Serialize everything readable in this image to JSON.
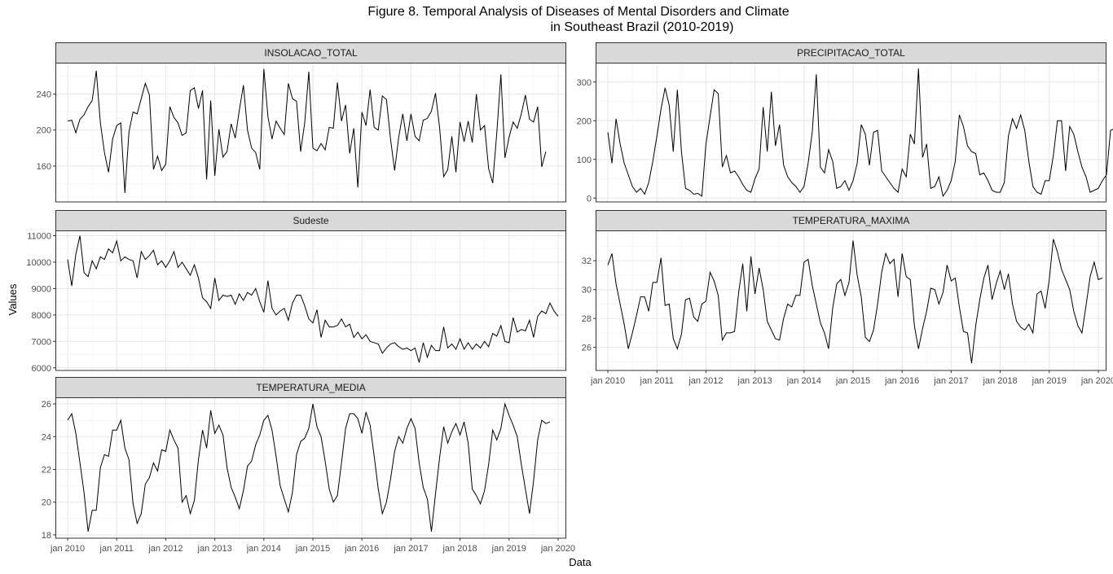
{
  "title_line1": "Figure 8. Temporal Analysis of Diseases of Mental Disorders and Climate",
  "title_line2": "in Southeast Brazil (2010-2019)",
  "chart_data": {
    "type": "line",
    "facet": "wrap",
    "x_label": "Data",
    "y_label": "Values",
    "x_ticks": [
      "jan 2010",
      "jan 2011",
      "jan 2012",
      "jan 2013",
      "jan 2014",
      "jan 2015",
      "jan 2016",
      "jan 2017",
      "jan 2018",
      "jan 2019",
      "jan 2020"
    ],
    "x_start": "2010-01",
    "x_frequency": "monthly",
    "x_range": [
      "2009-10",
      "2020-03"
    ],
    "grid": true,
    "theme": "bw",
    "panels": [
      {
        "name": "INSOLACAO_TOTAL",
        "ylim": [
          120,
          275
        ],
        "y_ticks": [
          160,
          200,
          240
        ],
        "values": [
          210,
          211,
          197,
          212,
          217,
          226,
          233,
          266,
          208,
          175,
          153,
          190,
          205,
          208,
          130,
          198,
          220,
          218,
          235,
          252,
          239,
          156,
          171,
          155,
          162,
          226,
          214,
          208,
          194,
          197,
          244,
          247,
          224,
          244,
          145,
          233,
          149,
          201,
          170,
          176,
          207,
          191,
          222,
          250,
          200,
          180,
          175,
          156,
          268,
          215,
          190,
          210,
          202,
          195,
          252,
          235,
          232,
          176,
          208,
          265,
          180,
          177,
          185,
          178,
          203,
          202,
          253,
          210,
          228,
          174,
          202,
          136,
          220,
          205,
          245,
          203,
          200,
          238,
          234,
          190,
          155,
          192,
          218,
          188,
          218,
          193,
          188,
          211,
          213,
          221,
          241,
          203,
          148,
          156,
          193,
          153,
          209,
          187,
          210,
          186,
          240,
          200,
          205,
          157,
          141,
          197,
          262,
          169,
          192,
          209,
          202,
          218,
          239,
          212,
          209,
          226,
          159,
          176
        ]
      },
      {
        "name": "PRECIPITACAO_TOTAL",
        "ylim": [
          -10,
          350
        ],
        "y_ticks": [
          0,
          100,
          200,
          300
        ],
        "values": [
          170,
          90,
          205,
          140,
          90,
          60,
          30,
          15,
          25,
          10,
          40,
          95,
          160,
          230,
          285,
          240,
          120,
          280,
          120,
          25,
          20,
          10,
          12,
          5,
          140,
          210,
          280,
          270,
          80,
          110,
          65,
          70,
          55,
          35,
          20,
          15,
          50,
          75,
          235,
          120,
          275,
          135,
          190,
          85,
          55,
          40,
          30,
          15,
          30,
          90,
          170,
          320,
          80,
          65,
          125,
          95,
          25,
          30,
          45,
          20,
          45,
          90,
          190,
          165,
          85,
          170,
          175,
          70,
          55,
          40,
          25,
          15,
          75,
          55,
          165,
          140,
          335,
          105,
          140,
          25,
          30,
          55,
          5,
          20,
          45,
          95,
          215,
          185,
          135,
          120,
          115,
          60,
          65,
          45,
          20,
          15,
          15,
          40,
          160,
          205,
          180,
          215,
          175,
          95,
          30,
          15,
          10,
          45,
          45,
          110,
          200,
          200,
          70,
          185,
          165,
          120,
          80,
          55,
          15,
          20,
          25,
          45,
          60,
          175,
          180
        ]
      },
      {
        "name": "Sudeste",
        "ylim": [
          5900,
          11200
        ],
        "y_ticks": [
          6000,
          7000,
          8000,
          9000,
          10000,
          11000
        ],
        "values": [
          10100,
          9100,
          10300,
          11000,
          9600,
          9450,
          10050,
          9750,
          10200,
          10100,
          10500,
          10350,
          10800,
          10050,
          10200,
          10100,
          10050,
          9400,
          10400,
          10100,
          10250,
          10450,
          9900,
          10050,
          9800,
          10050,
          10400,
          9800,
          10000,
          9750,
          9500,
          9900,
          9400,
          8650,
          8500,
          8250,
          9400,
          8550,
          8750,
          8700,
          8750,
          8400,
          8800,
          8550,
          8850,
          8750,
          9000,
          8500,
          8100,
          9300,
          8250,
          8000,
          8150,
          8250,
          7800,
          8450,
          8750,
          8750,
          8350,
          7850,
          7700,
          8200,
          7150,
          7800,
          7550,
          7550,
          7600,
          7850,
          7550,
          7650,
          7150,
          7350,
          7100,
          7250,
          7000,
          6950,
          6900,
          6550,
          6750,
          6900,
          6950,
          6800,
          6700,
          6750,
          6650,
          6750,
          6200,
          6950,
          6400,
          6850,
          6650,
          6650,
          7550,
          6750,
          6900,
          6700,
          7100,
          6700,
          6950,
          6700,
          6900,
          6750,
          7000,
          6800,
          7300,
          7200,
          7600,
          7000,
          6950,
          7900,
          7350,
          7450,
          7400,
          7800,
          7150,
          7950,
          8150,
          8050,
          8450,
          8150,
          7950
        ]
      },
      {
        "name": "TEMPERATURA_MAXIMA",
        "ylim": [
          24.4,
          34.1
        ],
        "y_ticks": [
          26,
          28,
          30,
          32
        ],
        "values": [
          31.7,
          32.5,
          30.4,
          29.0,
          27.6,
          25.9,
          27.0,
          28.2,
          29.5,
          29.5,
          28.5,
          30.5,
          30.5,
          32.2,
          28.9,
          29.0,
          26.6,
          25.9,
          26.9,
          29.3,
          29.4,
          28.1,
          27.8,
          29.0,
          29.2,
          31.2,
          30.6,
          29.6,
          26.5,
          27.0,
          27.0,
          27.1,
          29.8,
          31.8,
          28.5,
          32.3,
          29.7,
          31.5,
          30.0,
          27.8,
          27.2,
          26.6,
          26.5,
          28.0,
          29.0,
          28.8,
          29.6,
          29.6,
          31.9,
          32.1,
          30.3,
          29.0,
          27.7,
          27.0,
          25.9,
          28.7,
          30.4,
          30.7,
          29.6,
          30.5,
          33.4,
          31.0,
          29.5,
          26.7,
          26.4,
          27.2,
          29.0,
          31.2,
          32.5,
          31.8,
          32.1,
          29.5,
          32.5,
          30.9,
          30.7,
          27.5,
          25.9,
          27.3,
          28.5,
          30.1,
          30.0,
          29.0,
          29.8,
          31.7,
          30.6,
          30.8,
          28.8,
          27.1,
          27.0,
          24.9,
          27.5,
          29.3,
          30.8,
          31.7,
          29.3,
          30.4,
          31.3,
          30.0,
          31.1,
          29.0,
          27.8,
          27.4,
          27.2,
          27.6,
          27.0,
          29.7,
          29.9,
          28.7,
          30.7,
          33.5,
          32.6,
          31.4,
          30.7,
          30.0,
          28.5,
          27.5,
          27.0,
          28.9,
          30.9,
          31.9,
          30.7,
          30.8
        ]
      },
      {
        "name": "TEMPERATURA_MEDIA",
        "ylim": [
          17.8,
          26.4
        ],
        "y_ticks": [
          18,
          20,
          22,
          24,
          26
        ],
        "values": [
          25.0,
          25.4,
          24.2,
          22.4,
          20.6,
          18.2,
          19.5,
          19.5,
          22.1,
          22.9,
          22.8,
          24.4,
          24.4,
          25.0,
          23.3,
          22.6,
          19.9,
          18.7,
          19.3,
          21.1,
          21.5,
          22.4,
          21.9,
          23.2,
          23.1,
          24.4,
          23.8,
          23.3,
          20.0,
          20.4,
          19.3,
          20.1,
          22.6,
          24.4,
          23.3,
          25.6,
          24.2,
          24.7,
          24.1,
          22.1,
          20.9,
          20.3,
          19.6,
          20.7,
          22.2,
          22.5,
          23.5,
          24.1,
          25.0,
          25.3,
          24.4,
          22.8,
          21.0,
          20.2,
          19.4,
          20.6,
          22.9,
          23.7,
          23.9,
          24.5,
          26.0,
          24.6,
          24.0,
          22.5,
          20.8,
          20.0,
          20.4,
          22.4,
          24.5,
          25.4,
          25.4,
          25.1,
          24.2,
          25.5,
          24.7,
          22.8,
          20.8,
          19.3,
          20.0,
          21.4,
          23.1,
          24.0,
          23.6,
          24.5,
          25.1,
          24.5,
          22.4,
          20.9,
          20.2,
          18.2,
          20.5,
          22.7,
          24.6,
          23.6,
          24.3,
          24.8,
          24.1,
          24.9,
          23.6,
          20.8,
          20.4,
          19.9,
          20.7,
          22.3,
          24.4,
          23.8,
          24.5,
          26.0,
          25.3,
          24.7,
          24.0,
          22.3,
          20.8,
          19.3,
          21.3,
          23.8,
          25.0,
          24.8,
          24.9
        ]
      }
    ]
  }
}
